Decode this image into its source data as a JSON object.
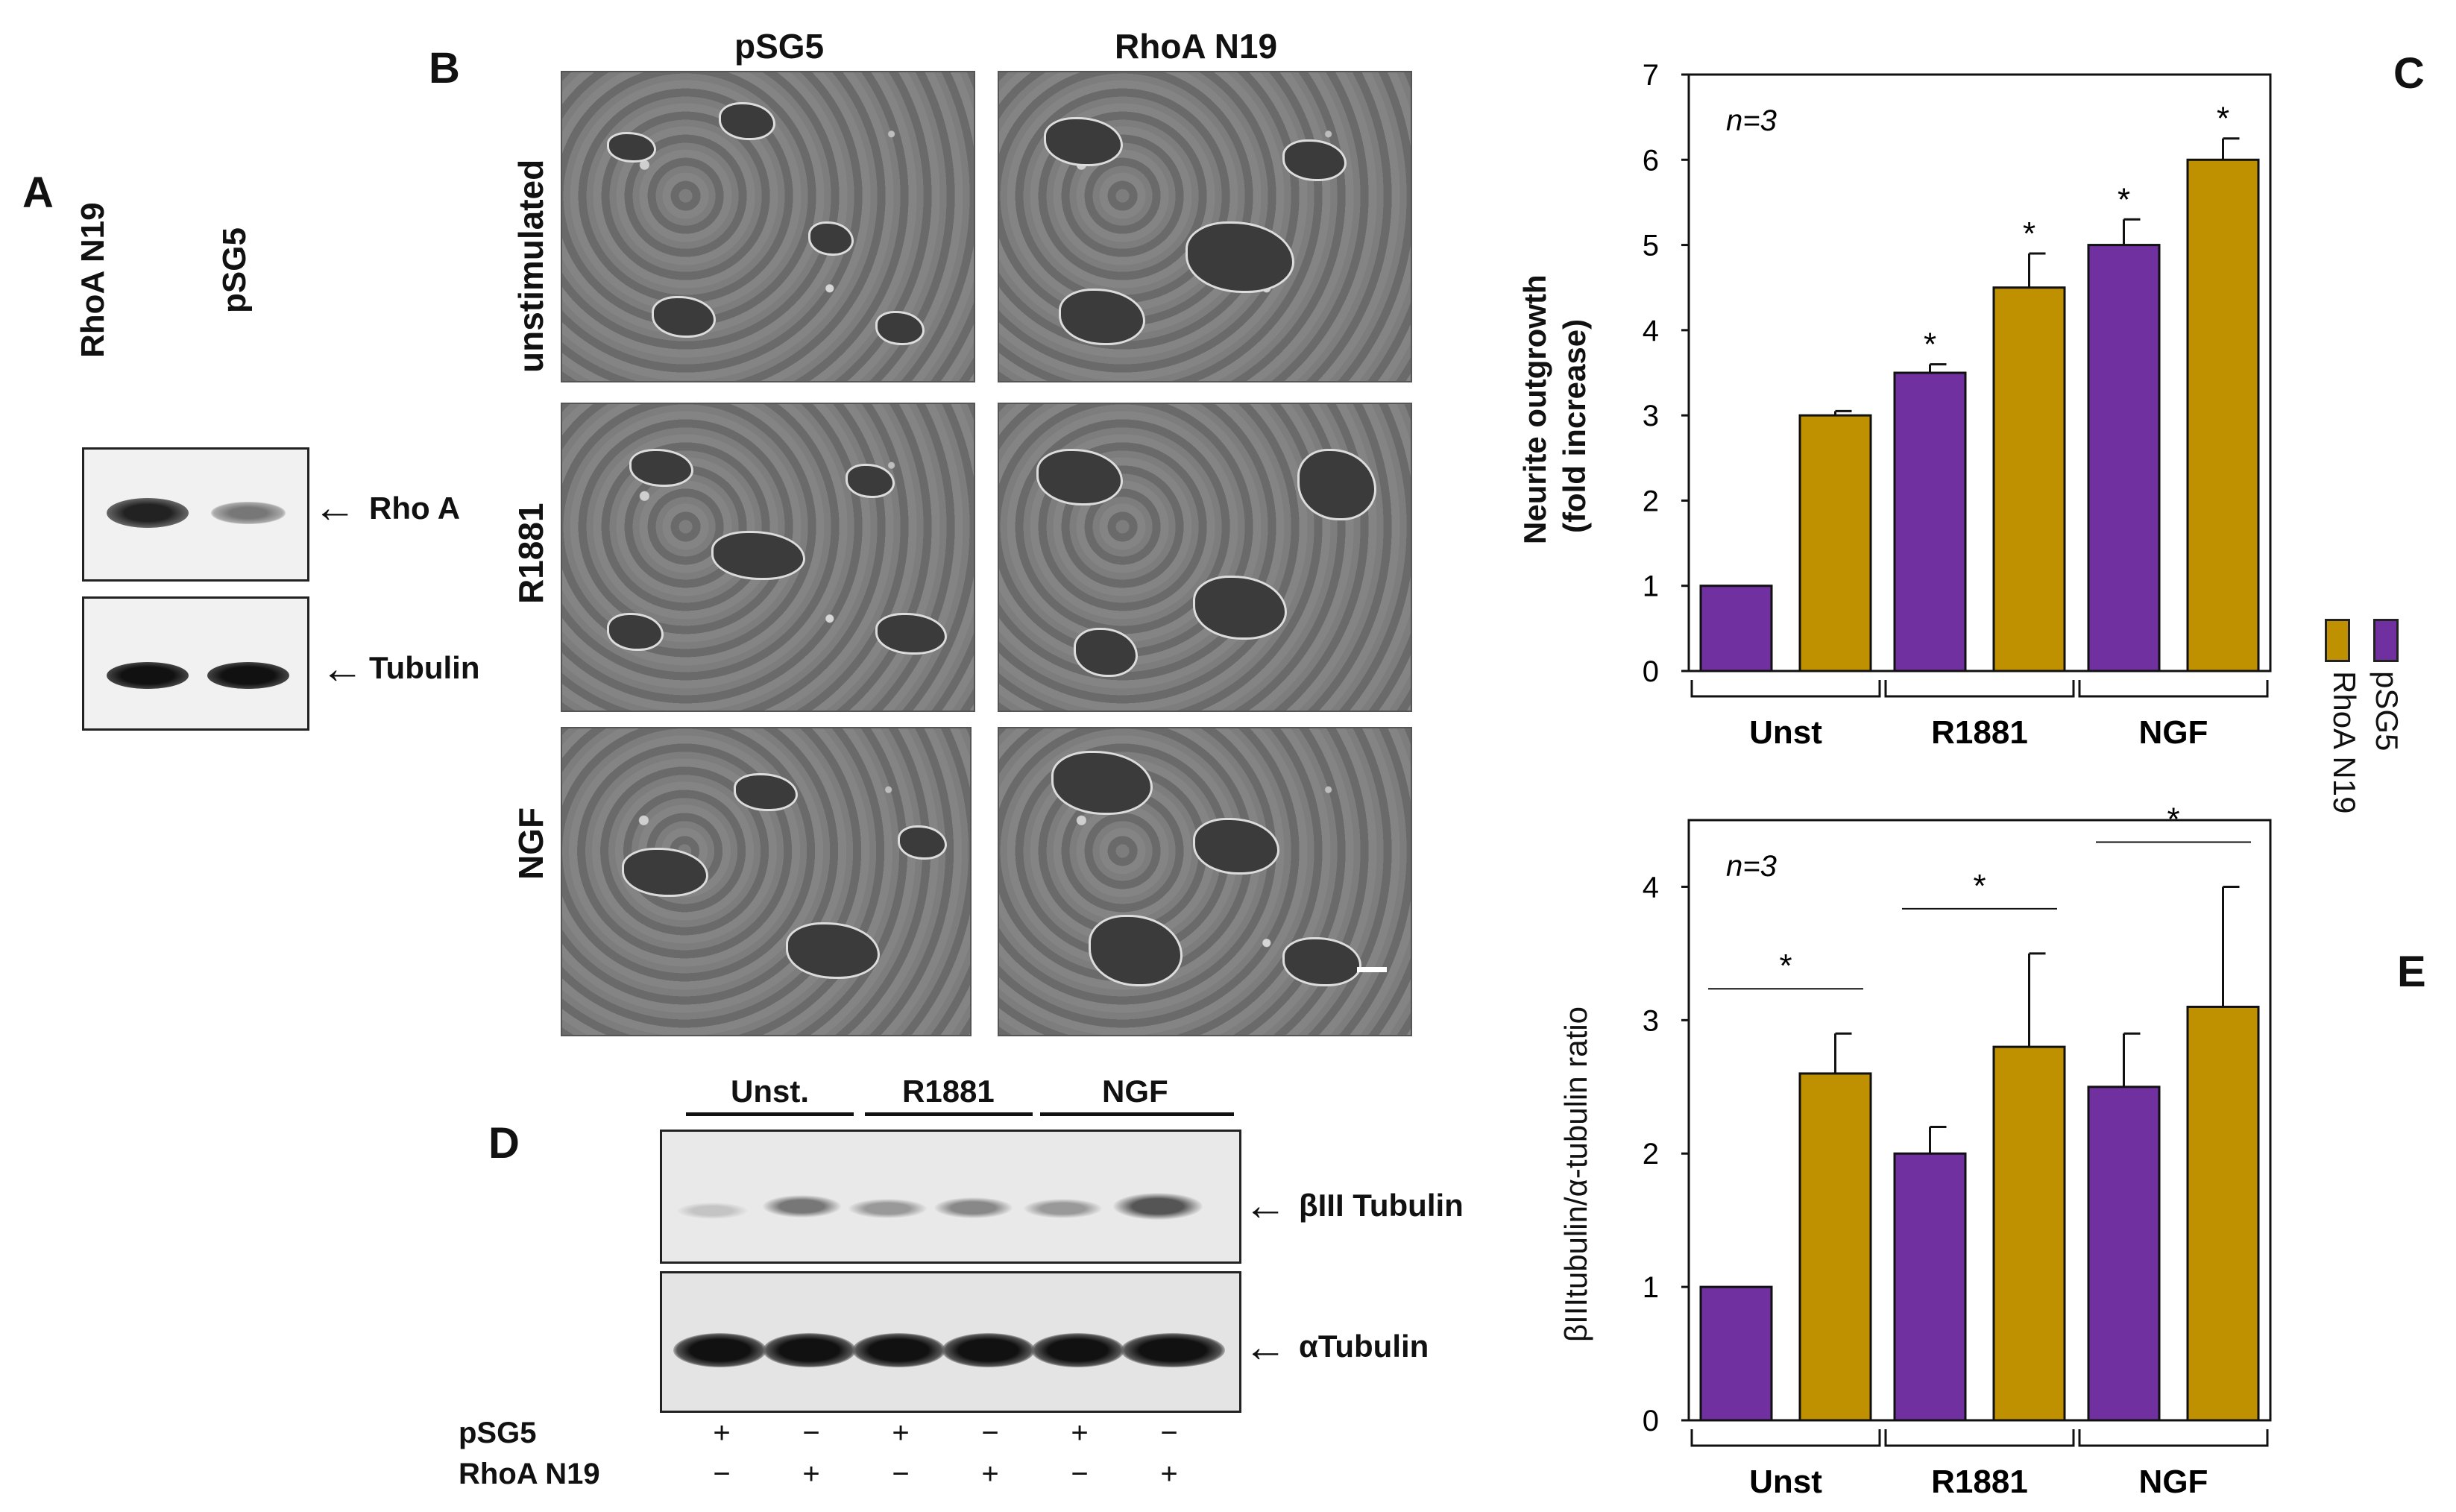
{
  "panels": {
    "A": "A",
    "B": "B",
    "C": "C",
    "D": "D",
    "E": "E"
  },
  "panel_a": {
    "lanes": [
      "RhoA N19",
      "pSG5"
    ],
    "rows": [
      "Rho A",
      "Tubulin"
    ]
  },
  "panel_b": {
    "columns": [
      "pSG5",
      "RhoA N19"
    ],
    "rows": [
      "unstimulated",
      "R1881",
      "NGF"
    ]
  },
  "panel_d": {
    "groups": [
      "Unst.",
      "R1881",
      "NGF"
    ],
    "rows": [
      "βIII Tubulin",
      "αTubulin"
    ],
    "conditions": [
      {
        "name": "pSG5",
        "signs": [
          "+",
          "−",
          "+",
          "−",
          "+",
          "−"
        ]
      },
      {
        "name": "RhoA N19",
        "signs": [
          "−",
          "+",
          "−",
          "+",
          "−",
          "+"
        ]
      }
    ]
  },
  "legend": {
    "entries": [
      {
        "name": "pSG5",
        "color": "#7030a0"
      },
      {
        "name": "RhoA N19",
        "color": "#bf9000"
      }
    ]
  },
  "chart_data": [
    {
      "id": "C",
      "type": "bar",
      "title": "",
      "annotation": "n=3",
      "ylabel": "Neurite outgrowth (fold increase)",
      "xlabel": "",
      "categories": [
        "Unst",
        "R1881",
        "NGF"
      ],
      "ylim": [
        0,
        7
      ],
      "yticks": [
        "0",
        "1",
        "2",
        "3",
        "4",
        "5",
        "6",
        "7"
      ],
      "series": [
        {
          "name": "pSG5",
          "color": "#7030a0",
          "values": [
            1,
            3.5,
            5.0
          ],
          "errors": [
            0,
            0.1,
            0.3
          ],
          "significant": [
            false,
            true,
            true
          ]
        },
        {
          "name": "RhoA N19",
          "color": "#bf9000",
          "values": [
            3.0,
            4.5,
            6.0
          ],
          "errors": [
            0.05,
            0.4,
            0.25
          ],
          "significant": [
            false,
            true,
            true
          ]
        }
      ],
      "significance_marker": "*"
    },
    {
      "id": "E",
      "type": "bar",
      "title": "",
      "annotation": "n=3",
      "ylabel": "βIIItubulin/α-tubulin ratio",
      "xlabel": "",
      "categories": [
        "Unst",
        "R1881",
        "NGF"
      ],
      "ylim": [
        0,
        4.5
      ],
      "yticks": [
        "0",
        "1",
        "2",
        "3",
        "4"
      ],
      "series": [
        {
          "name": "pSG5",
          "color": "#7030a0",
          "values": [
            1.0,
            2.0,
            2.5
          ],
          "errors": [
            0,
            0.2,
            0.4
          ]
        },
        {
          "name": "RhoA N19",
          "color": "#bf9000",
          "values": [
            2.6,
            2.8,
            3.1
          ],
          "errors": [
            0.3,
            0.7,
            0.9
          ]
        }
      ],
      "significance_marker": "*",
      "pairwise_significant": [
        true,
        true,
        true
      ]
    }
  ]
}
